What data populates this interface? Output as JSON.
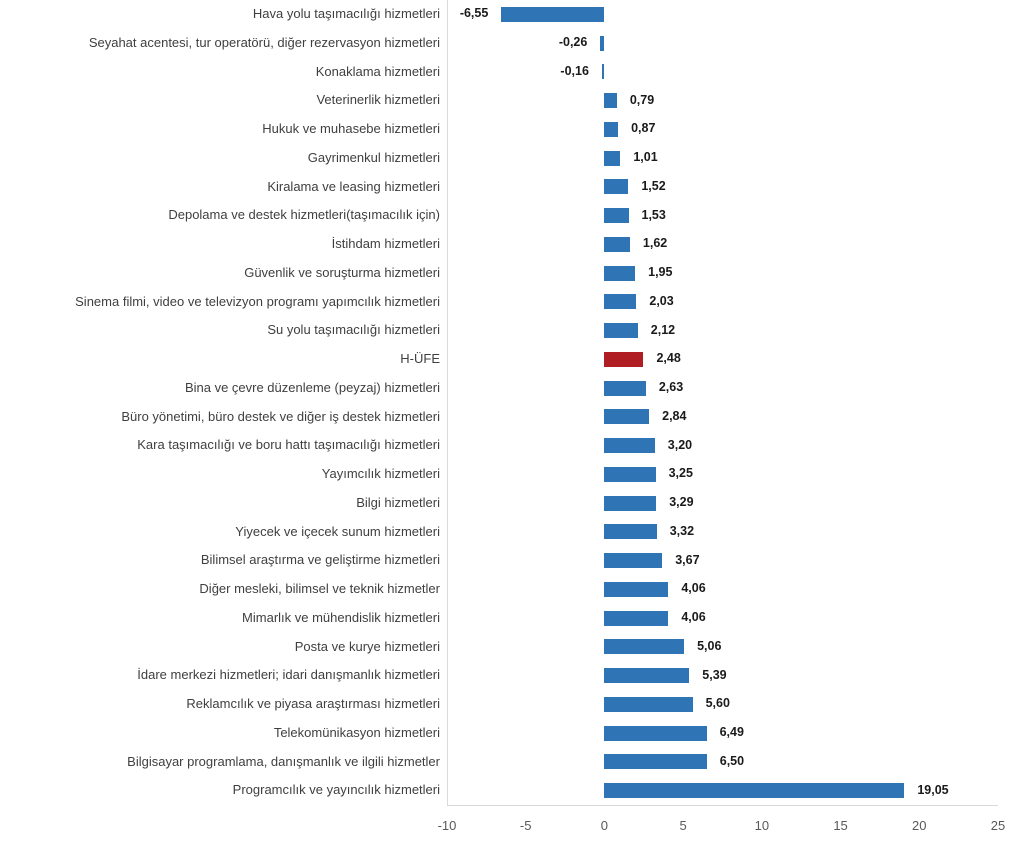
{
  "chart_data": {
    "type": "bar",
    "orientation": "horizontal",
    "title": "",
    "xlabel": "",
    "ylabel": "",
    "xlim": [
      -10,
      25
    ],
    "x_ticks": [
      -10,
      -5,
      0,
      5,
      10,
      15,
      20,
      25
    ],
    "x_tick_labels": [
      "-10",
      "-5",
      "0",
      "5",
      "10",
      "15",
      "20",
      "25"
    ],
    "grid": false,
    "legend": false,
    "decimal_separator": ",",
    "highlight_category": "H-ÜFE",
    "colors": {
      "bar": "#2F75B5",
      "highlight": "#B01E24",
      "axis_line": "#D9D9D9",
      "category_text": "#3F3F3F",
      "value_text": "#1A1A1A",
      "tick_text": "#595959"
    },
    "categories": [
      "Hava yolu taşımacılığı hizmetleri",
      "Seyahat acentesi, tur operatörü, diğer rezervasyon hizmetleri",
      "Konaklama hizmetleri",
      "Veterinerlik hizmetleri",
      "Hukuk ve muhasebe hizmetleri",
      "Gayrimenkul hizmetleri",
      "Kiralama ve leasing hizmetleri",
      "Depolama ve destek hizmetleri(taşımacılık için)",
      "İstihdam hizmetleri",
      "Güvenlik ve soruşturma hizmetleri",
      "Sinema filmi, video ve televizyon programı yapımcılık hizmetleri",
      "Su yolu taşımacılığı hizmetleri",
      "H-ÜFE",
      "Bina ve çevre düzenleme (peyzaj) hizmetleri",
      "Büro yönetimi, büro destek ve diğer iş destek hizmetleri",
      "Kara taşımacılığı ve boru hattı taşımacılığı hizmetleri",
      "Yayımcılık hizmetleri",
      "Bilgi hizmetleri",
      "Yiyecek ve içecek sunum hizmetleri",
      "Bilimsel araştırma ve geliştirme hizmetleri",
      "Diğer mesleki, bilimsel ve teknik hizmetler",
      "Mimarlık ve mühendislik hizmetleri",
      "Posta ve kurye hizmetleri",
      "İdare merkezi hizmetleri; idari danışmanlık hizmetleri",
      "Reklamcılık ve piyasa araştırması hizmetleri",
      "Telekomünikasyon hizmetleri",
      "Bilgisayar programlama, danışmanlık ve ilgili hizmetler",
      "Programcılık ve yayıncılık hizmetleri"
    ],
    "values": [
      -6.55,
      -0.26,
      -0.16,
      0.79,
      0.87,
      1.01,
      1.52,
      1.53,
      1.62,
      1.95,
      2.03,
      2.12,
      2.48,
      2.63,
      2.84,
      3.2,
      3.25,
      3.29,
      3.32,
      3.67,
      4.06,
      4.06,
      5.06,
      5.39,
      5.6,
      6.49,
      6.5,
      19.05
    ],
    "value_labels": [
      "-6,55",
      "-0,26",
      "-0,16",
      "0,79",
      "0,87",
      "1,01",
      "1,52",
      "1,53",
      "1,62",
      "1,95",
      "2,03",
      "2,12",
      "2,48",
      "2,63",
      "2,84",
      "3,20",
      "3,25",
      "3,29",
      "3,32",
      "3,67",
      "4,06",
      "4,06",
      "5,06",
      "5,39",
      "5,60",
      "6,49",
      "6,50",
      "19,05"
    ]
  }
}
